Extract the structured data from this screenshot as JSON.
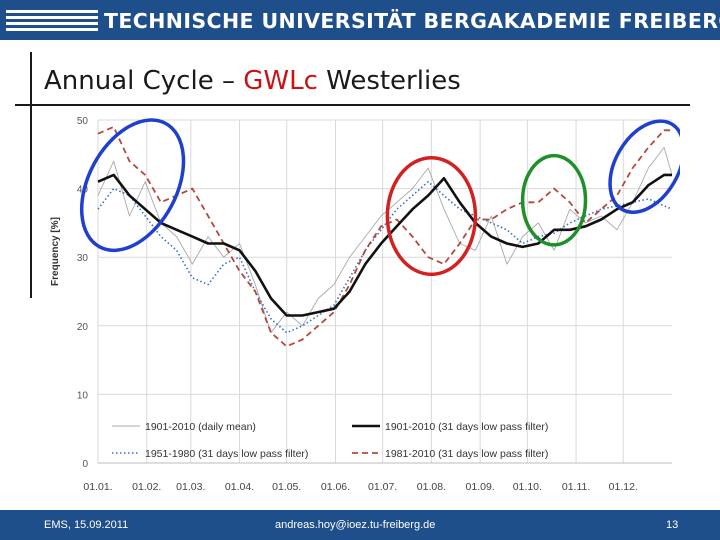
{
  "header": {
    "university": "TECHNISCHE UNIVERSITÄT BERGAKADEMIE FREIBERG",
    "brand_color": "#1f4f8a"
  },
  "slide": {
    "title_part1": "Annual Cycle  – ",
    "title_highlight": "GWLc",
    "title_part2": " Westerlies",
    "highlight_color": "#cc1111"
  },
  "footer": {
    "left": "EMS, 15.09.2011",
    "center": "andreas.hoy@ioez.tu-freiberg.de",
    "page": "13"
  },
  "chart_data": {
    "type": "line",
    "ylabel": "Frequency [%]",
    "ylim": [
      0,
      50
    ],
    "yticks": [
      "0",
      "10",
      "20",
      "30",
      "40",
      "50"
    ],
    "xlim": [
      0,
      365
    ],
    "xticks": [
      "01.01.",
      "01.02.",
      "01.03.",
      "01.04.",
      "01.05.",
      "01.06.",
      "01.07.",
      "01.08.",
      "01.09.",
      "01.10.",
      "01.11.",
      "01.12."
    ],
    "xtick_days": [
      0,
      31,
      59,
      90,
      120,
      151,
      181,
      212,
      243,
      273,
      304,
      334
    ],
    "grid": true,
    "legend_position": "bottom",
    "series": [
      {
        "name": "1901-2010 (daily mean)",
        "color": "#a8a8a8",
        "style": "thin",
        "x": [
          0,
          10,
          20,
          30,
          40,
          50,
          60,
          70,
          80,
          90,
          100,
          110,
          120,
          130,
          140,
          150,
          160,
          170,
          180,
          190,
          200,
          210,
          220,
          230,
          240,
          250,
          260,
          270,
          280,
          290,
          300,
          310,
          320,
          330,
          340,
          350,
          360,
          365
        ],
        "y": [
          39,
          44,
          36,
          41,
          35,
          33,
          29,
          33,
          30,
          32,
          26,
          19,
          22,
          20,
          24,
          26,
          30,
          33,
          36,
          38,
          40,
          43,
          37,
          32,
          31,
          36,
          29,
          33,
          35,
          31,
          37,
          35,
          36,
          34,
          38,
          43,
          46,
          42
        ]
      },
      {
        "name": "1901-2010 (31 days low pass filter)",
        "color": "#111111",
        "style": "bold",
        "x": [
          0,
          10,
          20,
          30,
          40,
          50,
          60,
          70,
          80,
          90,
          100,
          110,
          120,
          130,
          140,
          150,
          160,
          170,
          180,
          190,
          200,
          210,
          220,
          230,
          240,
          250,
          260,
          270,
          280,
          290,
          300,
          310,
          320,
          330,
          340,
          350,
          360,
          365
        ],
        "y": [
          41,
          42,
          39,
          37,
          35,
          34,
          33,
          32,
          32,
          31,
          28,
          24,
          21.5,
          21.5,
          22,
          22.5,
          25,
          29,
          32,
          34.5,
          37,
          39,
          41.5,
          38,
          35,
          33,
          32,
          31.5,
          32,
          34,
          34,
          34.5,
          35.5,
          37,
          38,
          40.5,
          42,
          42
        ]
      },
      {
        "name": "1951-1980 (31 days low pass filter)",
        "color": "#3a6fc4",
        "style": "dotted",
        "x": [
          0,
          10,
          20,
          30,
          40,
          50,
          60,
          70,
          80,
          90,
          100,
          110,
          120,
          130,
          140,
          150,
          160,
          170,
          180,
          190,
          200,
          210,
          220,
          230,
          240,
          250,
          260,
          270,
          280,
          290,
          300,
          310,
          320,
          330,
          340,
          350,
          360,
          365
        ],
        "y": [
          37,
          40,
          39,
          36,
          33,
          31,
          27,
          26,
          29,
          30,
          25,
          21,
          19,
          20,
          21.5,
          23,
          27,
          31,
          34,
          37,
          39,
          41,
          39,
          37,
          36,
          35,
          34,
          32,
          33,
          33.5,
          35,
          36,
          37,
          37.5,
          38,
          38.5,
          37.5,
          37
        ]
      },
      {
        "name": "1981-2010 (31 days low pass filter)",
        "color": "#b5493c",
        "style": "dashed",
        "x": [
          0,
          10,
          20,
          30,
          40,
          50,
          60,
          70,
          80,
          90,
          100,
          110,
          120,
          130,
          140,
          150,
          160,
          170,
          180,
          190,
          200,
          210,
          220,
          230,
          240,
          250,
          260,
          270,
          280,
          290,
          300,
          310,
          320,
          330,
          340,
          350,
          360,
          365
        ],
        "y": [
          48,
          49,
          44,
          42,
          38,
          39,
          40,
          36,
          32,
          28,
          25,
          19,
          17,
          18,
          20,
          22,
          26,
          31,
          34.5,
          35.5,
          33,
          30,
          29,
          32,
          35.5,
          35.5,
          37,
          38,
          38,
          40,
          38,
          35,
          37,
          39,
          43,
          46,
          48.5,
          48.5
        ]
      }
    ],
    "annotations": [
      {
        "shape": "ellipse",
        "color": "#1f3fcf",
        "cx": 22,
        "cy": 40.5,
        "rx": 28,
        "ry": 10.2,
        "rotate": 28
      },
      {
        "shape": "ellipse",
        "color": "#d42020",
        "cx": 212,
        "cy": 36,
        "rx": 28,
        "ry": 8.5,
        "rotate": 0
      },
      {
        "shape": "ellipse",
        "color": "#1f8f2a",
        "cx": 290,
        "cy": 38.3,
        "rx": 20,
        "ry": 6.5,
        "rotate": 0
      },
      {
        "shape": "ellipse",
        "color": "#1f3fcf",
        "cx": 349,
        "cy": 43.2,
        "rx": 20,
        "ry": 7.2,
        "rotate": 30
      }
    ]
  }
}
